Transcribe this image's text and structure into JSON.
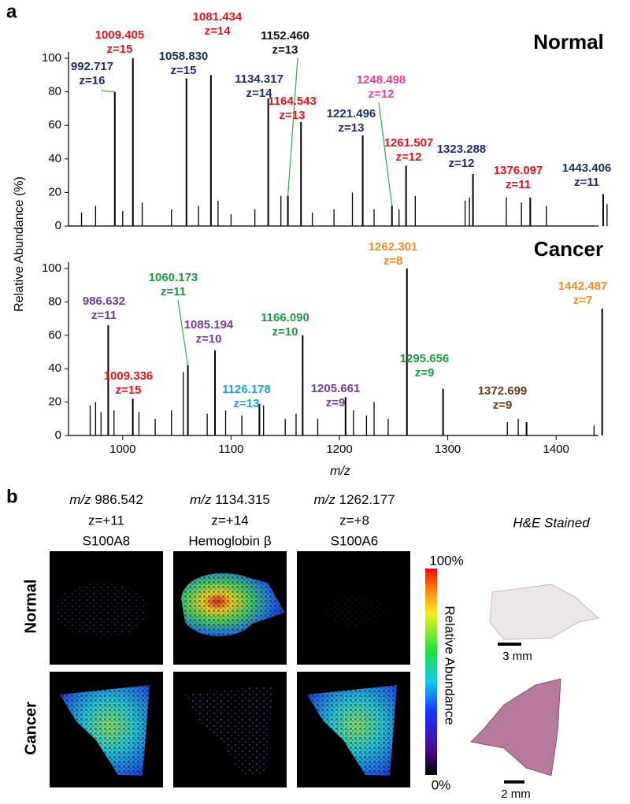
{
  "panel_labels": [
    "a",
    "b"
  ],
  "chart_data": [
    {
      "type": "spectrum",
      "title": "Normal",
      "ylabel": "Relative Abundance (%)",
      "xlim": [
        950,
        1450
      ],
      "ylim": [
        0,
        100
      ],
      "yticks": [
        0,
        20,
        40,
        60,
        80,
        100
      ],
      "color": "#000000",
      "peaks": {
        "x": [
          992.717,
          1009.405,
          1058.83,
          1081.434,
          1134.317,
          1152.46,
          1164.543,
          1221.496,
          1248.498,
          1261.507,
          1323.288,
          1376.097,
          1443.406
        ],
        "values": [
          80,
          100,
          88,
          90,
          76,
          18,
          62,
          54,
          12,
          36,
          31,
          17,
          19
        ],
        "mz_labels": [
          "992.717",
          "1009.405",
          "1058.830",
          "1081.434",
          "1134.317",
          "1152.460",
          "1164.543",
          "1221.496",
          "1248.498",
          "1261.507",
          "1323.288",
          "1376.097",
          "1443.406"
        ],
        "z_labels": [
          "z=16",
          "z=15",
          "z=15",
          "z=14",
          "z=14",
          "z=13",
          "z=13",
          "z=13",
          "z=12",
          "z=12",
          "z=12",
          "z=11",
          "z=11"
        ],
        "colors": [
          "#1b2f6e",
          "#e8141c",
          "#1b2f6e",
          "#e8141c",
          "#1b2f6e",
          "#111111",
          "#e8141c",
          "#1b2f6e",
          "#ee3d96",
          "#e8141c",
          "#1b2f6e",
          "#e8141c",
          "#1b2f6e"
        ]
      },
      "minor_peaks": {
        "x": [
          962,
          975,
          1000,
          1018,
          1045,
          1070,
          1088,
          1100,
          1122,
          1146,
          1175,
          1195,
          1212,
          1232,
          1255,
          1270,
          1316,
          1320,
          1354,
          1368,
          1391,
          1447
        ],
        "values": [
          8,
          12,
          9,
          14,
          10,
          12,
          15,
          7,
          10,
          18,
          8,
          10,
          20,
          10,
          10,
          18,
          15,
          17,
          17,
          14,
          12,
          13
        ]
      }
    },
    {
      "type": "spectrum",
      "title": "Cancer",
      "xlabel": "m/z",
      "xlim": [
        950,
        1450
      ],
      "ylim": [
        0,
        100
      ],
      "yticks": [
        0,
        20,
        40,
        60,
        80,
        100
      ],
      "xticks": [
        1000,
        1100,
        1200,
        1300,
        1400
      ],
      "color": "#000000",
      "peaks": {
        "x": [
          986.632,
          1009.336,
          1060.173,
          1085.194,
          1126.178,
          1166.09,
          1205.661,
          1262.301,
          1295.656,
          1372.699,
          1442.487
        ],
        "values": [
          66,
          22,
          42,
          51,
          19,
          60,
          23,
          100,
          28,
          8,
          76
        ],
        "mz_labels": [
          "986.632",
          "1009.336",
          "1060.173",
          "1085.194",
          "1126.178",
          "1166.090",
          "1205.661",
          "1262.301",
          "1295.656",
          "1372.699",
          "1442.487"
        ],
        "z_labels": [
          "z=11",
          "z=15",
          "z=11",
          "z=10",
          "z=13",
          "z=10",
          "z=9",
          "z=8",
          "z=9",
          "z=9",
          "z=7"
        ],
        "colors": [
          "#7a3a9a",
          "#e8141c",
          "#1d9a3c",
          "#7a3a9a",
          "#1ea0e6",
          "#1d9a3c",
          "#7a3a9a",
          "#f28c28",
          "#1d9a3c",
          "#6b3a10",
          "#f28c28"
        ]
      },
      "minor_peaks": {
        "x": [
          970,
          975,
          980,
          992,
          1015,
          1030,
          1045,
          1056,
          1078,
          1095,
          1110,
          1130,
          1150,
          1160,
          1180,
          1213,
          1225,
          1232,
          1245,
          1355,
          1365,
          1435
        ],
        "values": [
          18,
          20,
          14,
          15,
          14,
          10,
          15,
          38,
          13,
          15,
          12,
          18,
          10,
          13,
          10,
          15,
          12,
          20,
          10,
          8,
          10,
          6
        ]
      }
    }
  ],
  "imaging": {
    "columns": [
      {
        "mz_prefix": "m/z",
        "mz": "986.542",
        "charge": "z=+11",
        "protein": "S100A8"
      },
      {
        "mz_prefix": "m/z",
        "mz": "1134.315",
        "charge": "z=+14",
        "protein": "Hemoglobin β"
      },
      {
        "mz_prefix": "m/z",
        "mz": "1262.177",
        "charge": "z=+8",
        "protein": "S100A6"
      }
    ],
    "rows": [
      "Normal",
      "Cancer"
    ],
    "colorbar": {
      "max": "100%",
      "label": "Relative Abundance",
      "min": "0%"
    },
    "he": {
      "title": "H&E Stained",
      "scales": [
        "3 mm",
        "2 mm"
      ]
    }
  }
}
